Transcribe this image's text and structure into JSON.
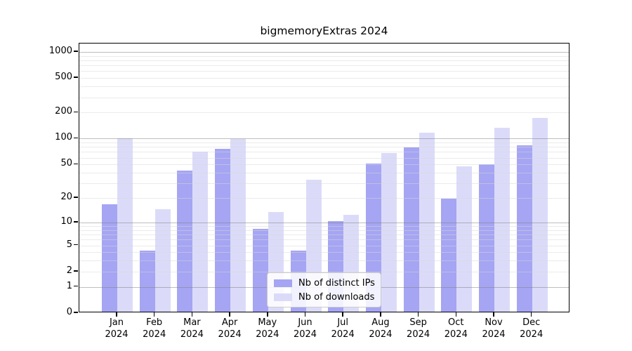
{
  "title": "bigmemoryExtras 2024",
  "chart_data": {
    "type": "bar",
    "title": "bigmemoryExtras 2024",
    "categories": [
      "Jan",
      "Feb",
      "Mar",
      "Apr",
      "May",
      "Jun",
      "Jul",
      "Aug",
      "Sep",
      "Oct",
      "Nov",
      "Dec"
    ],
    "x_year_label": "2024",
    "series": [
      {
        "name": "Nb of distinct IPs",
        "color": "#a5a5f3",
        "values": [
          16,
          4,
          41,
          73,
          8,
          4,
          10,
          49,
          76,
          19,
          48,
          80
        ]
      },
      {
        "name": "Nb of downloads",
        "color": "#dbdbf9",
        "values": [
          98,
          14,
          68,
          95,
          13,
          32,
          12,
          66,
          112,
          46,
          128,
          168
        ]
      }
    ],
    "y_ticks": [
      0,
      1,
      2,
      5,
      10,
      20,
      50,
      100,
      200,
      500,
      1000
    ],
    "y_tick_labels": [
      "0",
      "1",
      "2",
      "5",
      "10",
      "20",
      "50",
      "100",
      "200",
      "500",
      "1000"
    ],
    "y_scale": "log10(value+1), zero pinned to baseline",
    "ylim": [
      0,
      1245
    ],
    "xlabel": "",
    "ylabel": "",
    "grid": {
      "major_at": [
        1,
        10,
        100,
        1000
      ],
      "minor_at": "2-9, 20-90, 200-900",
      "drawn_over_bars": true
    },
    "legend": {
      "position": "bottom-center",
      "entries": [
        "Nb of distinct IPs",
        "Nb of downloads"
      ]
    }
  }
}
